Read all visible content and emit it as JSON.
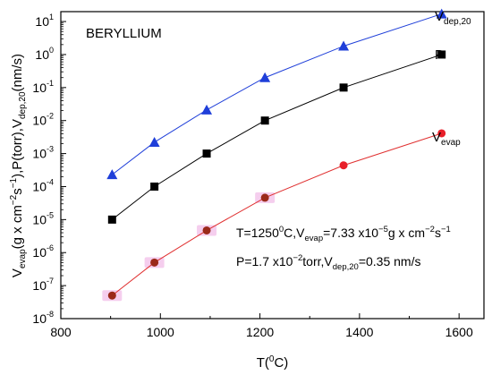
{
  "chart_data": {
    "type": "line",
    "title": "BERYLLIUM",
    "xlabel": {
      "main": "T(",
      "sup": "0",
      "tail": "C)"
    },
    "ylabel": {
      "parts": [
        {
          "t": "V",
          "k": "n"
        },
        {
          "t": "evap",
          "k": "sub"
        },
        {
          "t": "(g x cm",
          "k": "n"
        },
        {
          "t": "−2",
          "k": "sup"
        },
        {
          "t": "s",
          "k": "n"
        },
        {
          "t": "−1",
          "k": "sup"
        },
        {
          "t": "),P(torr),V",
          "k": "n"
        },
        {
          "t": "dep,20",
          "k": "sub"
        },
        {
          "t": "(nm/s)",
          "k": "n"
        }
      ]
    },
    "xlim": [
      800,
      1650
    ],
    "ylim_log10": [
      -8,
      1.3
    ],
    "yscale": "log",
    "x_ticks": [
      "800",
      "1000",
      "1200",
      "1400",
      "1600"
    ],
    "y_tick_exponents": [
      "1",
      "0",
      "-1",
      "-2",
      "-3",
      "-4",
      "-5",
      "-6",
      "-7",
      "-8"
    ],
    "series": [
      {
        "name_main": "V",
        "name_sub": "dep,20",
        "color": "#1f3fd9",
        "line_color": "#1f3fd9",
        "marker": "triangle",
        "x": [
          903,
          988,
          1093,
          1210,
          1368,
          1565
        ],
        "y": [
          0.00023,
          0.0022,
          0.021,
          0.2,
          1.8,
          17
        ]
      },
      {
        "name_main": "P",
        "name_sub": "",
        "color": "#000000",
        "line_color": "#000000",
        "marker": "square",
        "x": [
          903,
          988,
          1093,
          1210,
          1368,
          1565
        ],
        "y": [
          1e-05,
          0.0001,
          0.001,
          0.01,
          0.1,
          1
        ]
      },
      {
        "name_main": "V",
        "name_sub": "evap",
        "color": "#e8202a",
        "line_color": "#e03030",
        "marker": "circle",
        "x": [
          903,
          988,
          1093,
          1210,
          1368,
          1565
        ],
        "y": [
          5e-08,
          5e-07,
          4.7e-06,
          4.6e-05,
          0.00044,
          0.0041
        ]
      }
    ],
    "annotations": {
      "line1": [
        {
          "t": "T=1250",
          "k": "n"
        },
        {
          "t": "0",
          "k": "sup"
        },
        {
          "t": "C,V",
          "k": "n"
        },
        {
          "t": "evap",
          "k": "sub"
        },
        {
          "t": "=7.33 x10",
          "k": "n"
        },
        {
          "t": "−5",
          "k": "sup"
        },
        {
          "t": "g x cm",
          "k": "n"
        },
        {
          "t": "−2",
          "k": "sup"
        },
        {
          "t": "s",
          "k": "n"
        },
        {
          "t": "−1",
          "k": "sup"
        }
      ],
      "line2": [
        {
          "t": "P=1.7 x10",
          "k": "n"
        },
        {
          "t": "−2",
          "k": "sup"
        },
        {
          "t": "torr,V",
          "k": "n"
        },
        {
          "t": "dep,20",
          "k": "sub"
        },
        {
          "t": "=0.35 nm/s",
          "k": "n"
        }
      ]
    },
    "grid": false,
    "legend": "inline-right"
  }
}
